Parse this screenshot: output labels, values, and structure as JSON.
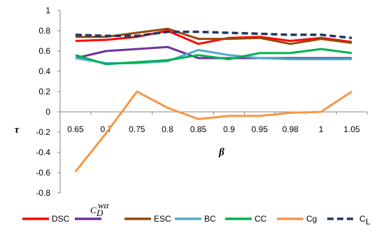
{
  "chart_data": {
    "type": "line",
    "xlabel": "β",
    "ylabel": "τ",
    "categories": [
      "0.65",
      "0.7",
      "0.75",
      "0.8",
      "0.85",
      "0.9",
      "0.95",
      "0.98",
      "1",
      "1.05"
    ],
    "ylim": [
      -0.8,
      1
    ],
    "yticks": [
      "1",
      "0.8",
      "0.6",
      "0.4",
      "0.2",
      "0",
      "-0.2",
      "-0.4",
      "-0.6",
      "-0.8"
    ],
    "grid": false,
    "legend_position": "bottom",
    "series": [
      {
        "name": "DSC",
        "color": "#ff0000",
        "dashed": false,
        "values": [
          0.7,
          0.71,
          0.74,
          0.8,
          0.67,
          0.73,
          0.74,
          0.7,
          0.73,
          0.69
        ]
      },
      {
        "name": "C_D^wα",
        "color": "#7030a0",
        "dashed": false,
        "values": [
          0.53,
          0.6,
          0.62,
          0.64,
          0.53,
          0.53,
          0.53,
          0.53,
          0.53,
          0.53
        ]
      },
      {
        "name": "ESC",
        "color": "#984807",
        "dashed": false,
        "values": [
          0.74,
          0.74,
          0.78,
          0.82,
          0.72,
          0.72,
          0.73,
          0.67,
          0.72,
          0.68
        ]
      },
      {
        "name": "BC",
        "color": "#4bacc6",
        "dashed": false,
        "values": [
          0.53,
          0.48,
          0.48,
          0.5,
          0.61,
          0.56,
          0.53,
          0.52,
          0.52,
          0.52
        ]
      },
      {
        "name": "CC",
        "color": "#00b050",
        "dashed": false,
        "values": [
          0.56,
          0.47,
          0.49,
          0.51,
          0.56,
          0.52,
          0.58,
          0.58,
          0.62,
          0.58
        ]
      },
      {
        "name": "Cg",
        "color": "#f79646",
        "dashed": false,
        "values": [
          -0.59,
          -0.21,
          0.2,
          0.04,
          -0.07,
          -0.04,
          -0.04,
          -0.01,
          0.0,
          0.2
        ]
      },
      {
        "name": "C_L",
        "color": "#1f3864",
        "dashed": true,
        "values": [
          0.76,
          0.75,
          0.75,
          0.79,
          0.79,
          0.78,
          0.77,
          0.76,
          0.76,
          0.73
        ]
      }
    ],
    "legend": [
      {
        "label": "DSC"
      },
      {
        "label_base": "C",
        "label_sub": "D",
        "label_sup": "wα"
      },
      {
        "label": "ESC"
      },
      {
        "label": "BC"
      },
      {
        "label": "CC"
      },
      {
        "label": "Cg"
      },
      {
        "label_base": "C",
        "label_sub": "L"
      }
    ]
  }
}
